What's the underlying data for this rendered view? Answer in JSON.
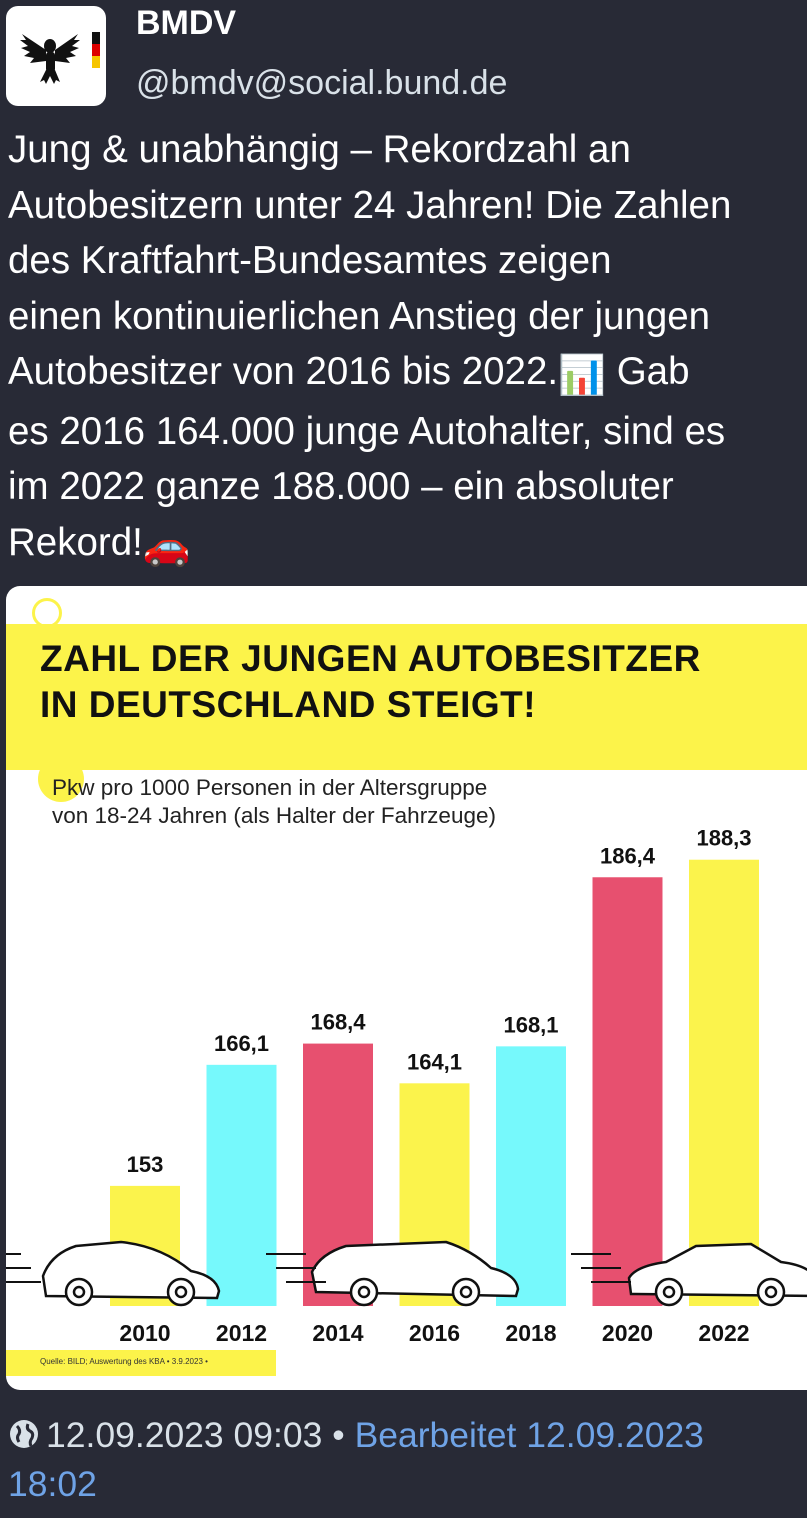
{
  "author": {
    "name": "BMDV",
    "handle": "@bmdv@social.bund.de",
    "avatar_icon": "federal-eagle-icon"
  },
  "post": {
    "text_before_chart_emoji": "Jung & unabhängig – Rekordzahl an\nAutobesitzern unter 24 Jahren! Die Zahlen\ndes Kraftfahrt-Bundesamtes zeigen\neinen kontinuierlichen Anstieg der jungen\nAutobesitzer von 2016 bis 2022.",
    "chart_emoji": "📊",
    "text_after_chart_emoji": " Gab\nes 2016 164.000 junge Autohalter, sind es\nim 2022 ganze 188.000 – ein absoluter\nRekord!",
    "car_emoji": "🚗"
  },
  "media": {
    "headline": "ZAHL DER JUNGEN AUTOBESITZER\nIN DEUTSCHLAND STEIGT!",
    "subtitle": "Pkw pro 1000 Personen in der Altersgruppe\nvon 18-24 Jahren (als Halter der Fahrzeuge)",
    "source": "Quelle: BILD; Auswertung des KBA • 3.9.2023 •"
  },
  "chart_data": {
    "type": "bar",
    "title": "ZAHL DER JUNGEN AUTOBESITZER IN DEUTSCHLAND STEIGT!",
    "subtitle": "Pkw pro 1000 Personen in der Altersgruppe von 18-24 Jahren (als Halter der Fahrzeuge)",
    "categories": [
      "2010",
      "2012",
      "2014",
      "2016",
      "2018",
      "2020",
      "2022"
    ],
    "values": [
      153,
      166.1,
      168.4,
      164.1,
      168.1,
      186.4,
      188.3
    ],
    "value_labels": [
      "153",
      "166,1",
      "168,4",
      "164,1",
      "168,1",
      "186,4",
      "188,3"
    ],
    "bar_colors": [
      "#fbf34c",
      "#76f9fc",
      "#e7506f",
      "#fbf34c",
      "#76f9fc",
      "#e7506f",
      "#fbf34c"
    ],
    "xlabel": "",
    "ylabel": "",
    "grid": false,
    "legend": "none"
  },
  "footer": {
    "timestamp": "12.09.2023 09:03",
    "separator": "•",
    "edited": "Bearbeitet 12.09.2023\n18:02"
  },
  "colors": {
    "background": "#282a36",
    "handle": "#d9e1e8",
    "link": "#6fa3e6",
    "accent_yellow": "#fcf34a"
  }
}
